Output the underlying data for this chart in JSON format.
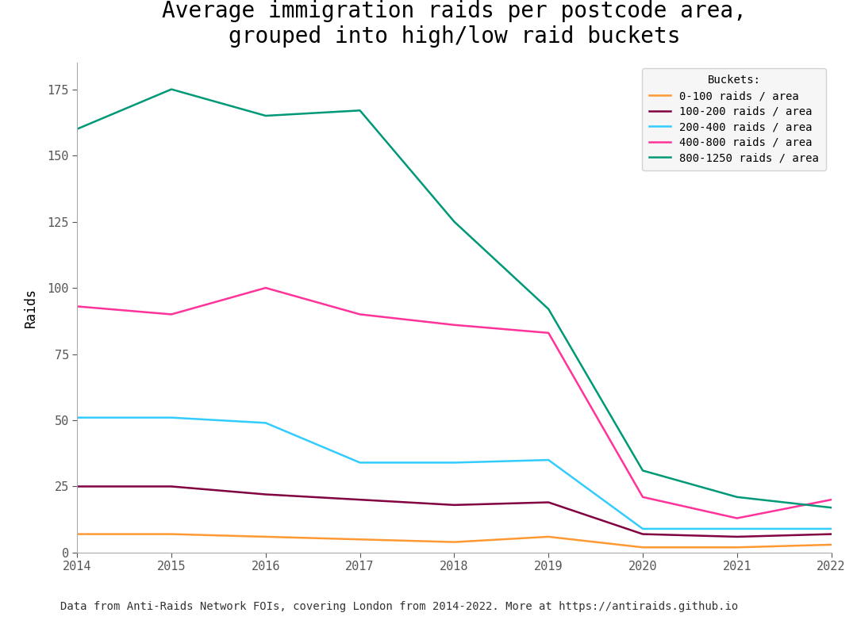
{
  "title": "Average immigration raids per postcode area,\ngrouped into high/low raid buckets",
  "xlabel": "",
  "ylabel": "Raids",
  "footnote": "Data from Anti-Raids Network FOIs, covering London from 2014-2022. More at https://antiraids.github.io",
  "years": [
    2014,
    2015,
    2016,
    2017,
    2018,
    2019,
    2020,
    2021,
    2022
  ],
  "series": [
    {
      "label": "0-100 raids / area",
      "color": "#ff9933",
      "values": [
        7,
        7,
        6,
        5,
        4,
        6,
        2,
        2,
        3
      ]
    },
    {
      "label": "100-200 raids / area",
      "color": "#800040",
      "values": [
        25,
        25,
        22,
        20,
        18,
        19,
        7,
        6,
        7
      ]
    },
    {
      "label": "200-400 raids / area",
      "color": "#33ccff",
      "values": [
        51,
        51,
        49,
        34,
        34,
        35,
        9,
        9,
        9
      ]
    },
    {
      "label": "400-800 raids / area",
      "color": "#ff3399",
      "values": [
        93,
        90,
        100,
        90,
        86,
        83,
        21,
        13,
        20
      ]
    },
    {
      "label": "800-1250 raids / area",
      "color": "#009977",
      "values": [
        160,
        175,
        165,
        167,
        125,
        92,
        31,
        21,
        17
      ]
    }
  ],
  "ylim": [
    0,
    185
  ],
  "yticks": [
    0,
    25,
    50,
    75,
    100,
    125,
    150,
    175
  ],
  "background_color": "#ffffff",
  "legend_title": "Buckets:",
  "legend_fontsize": 10,
  "title_fontsize": 20,
  "axis_fontsize": 12,
  "tick_fontsize": 11
}
